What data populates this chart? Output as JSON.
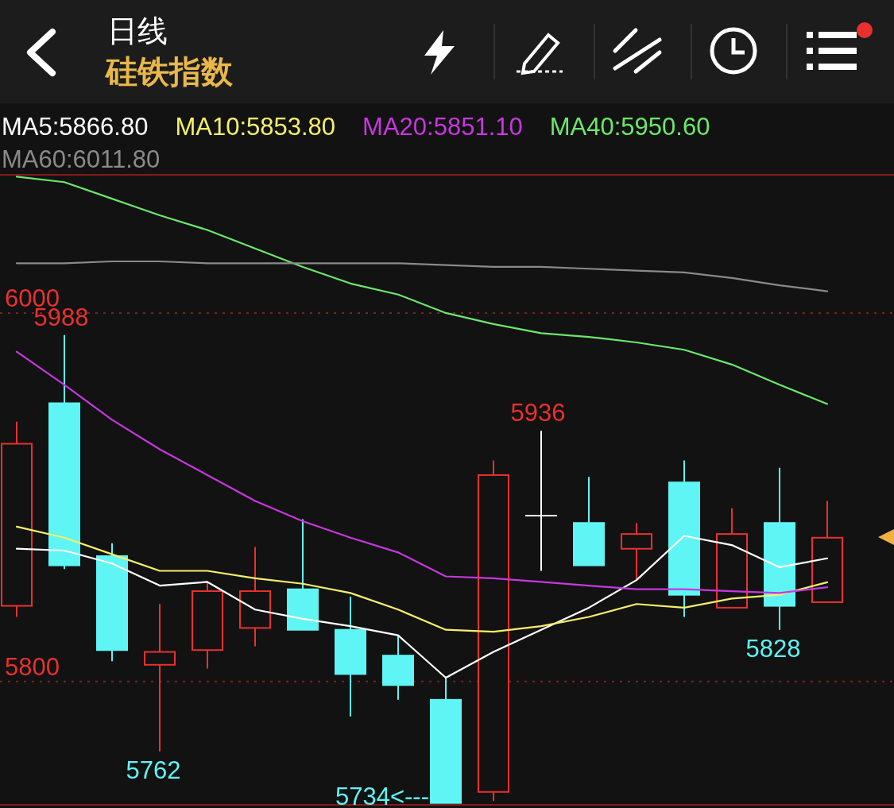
{
  "chart_data": {
    "type": "candlestick",
    "title": "日线",
    "subtitle": "硅铁指数",
    "categories": [
      null,
      null,
      null,
      null,
      null,
      null,
      null,
      null,
      null,
      null,
      null,
      null,
      null,
      null,
      null,
      null,
      null,
      null
    ],
    "ohlc": [
      [
        5841,
        5941,
        5835,
        5929
      ],
      [
        5951,
        5988,
        5861,
        5863
      ],
      [
        5868,
        5875,
        5811,
        5817
      ],
      [
        5809,
        5842,
        5762,
        5816
      ],
      [
        5817,
        5854,
        5807,
        5849
      ],
      [
        5829,
        5873,
        5819,
        5849
      ],
      [
        5850,
        5888,
        5828,
        5828
      ],
      [
        5828,
        5846,
        5781,
        5804
      ],
      [
        5814,
        5825,
        5790,
        5798
      ],
      [
        5790,
        5802,
        5734,
        5734
      ],
      [
        5740,
        5920,
        5735,
        5912
      ],
      [
        5890,
        5936,
        5860,
        5890
      ],
      [
        5886,
        5911,
        5863,
        5863
      ],
      [
        5872,
        5886,
        5855,
        5880
      ],
      [
        5908,
        5920,
        5835,
        5847
      ],
      [
        5840,
        5894,
        5840,
        5880
      ],
      [
        5886,
        5916,
        5828,
        5841
      ],
      [
        5843,
        5898,
        5843,
        5878
      ]
    ],
    "colors": [
      "#e8312f",
      "#5ff5f5",
      "#5ff5f5",
      "#e8312f",
      "#e8312f",
      "#e8312f",
      "#5ff5f5",
      "#5ff5f5",
      "#5ff5f5",
      "#5ff5f5",
      "#e8312f",
      "#ffffff",
      "#5ff5f5",
      "#e8312f",
      "#5ff5f5",
      "#e8312f",
      "#5ff5f5",
      "#e8312f"
    ],
    "series": [
      {
        "name": "MA5:5866.80",
        "type": "line",
        "color": "#ffffff",
        "values": [
          5872,
          5871,
          5864,
          5852,
          5854,
          5839,
          5834,
          5830,
          5825,
          5802,
          5816,
          5828,
          5840,
          5855,
          5879,
          5874,
          5862,
          5866.8
        ]
      },
      {
        "name": "MA10:5853.80",
        "type": "line",
        "color": "#f5f06a",
        "values": [
          5884,
          5878,
          5869,
          5860,
          5860,
          5856,
          5853,
          5848,
          5839,
          5828,
          5827,
          5830,
          5835,
          5842,
          5840,
          5845,
          5847,
          5853.8
        ]
      },
      {
        "name": "MA20:5851.10",
        "type": "line",
        "color": "#c837e0",
        "values": [
          5979,
          5961,
          5942,
          5926,
          5912,
          5898,
          5887,
          5878,
          5870,
          5857,
          5856,
          5854,
          5852,
          5850,
          5850,
          5849,
          5848,
          5851.1
        ]
      },
      {
        "name": "MA40:5950.60",
        "type": "line",
        "color": "#6be86b",
        "values": [
          6074,
          6071,
          6062,
          6053,
          6045,
          6035,
          6025,
          6016,
          6010,
          6000,
          5994,
          5989,
          5987,
          5984,
          5980,
          5972,
          5961,
          5950.6
        ]
      },
      {
        "name": "MA60:6011.80",
        "type": "line",
        "color": "#8a8a8a",
        "values": [
          6027,
          6027,
          6028,
          6028,
          6027,
          6027,
          6027,
          6027,
          6027,
          6026,
          6025,
          6025,
          6024,
          6023,
          6022,
          6019,
          6015,
          6011.8
        ]
      }
    ],
    "ylim": [
      5733,
      6075
    ],
    "yticks": [
      6000,
      5800
    ],
    "grid": "y",
    "legend": "top left",
    "annotations": [
      "5988",
      "5762",
      "5734<---",
      "5936",
      "5828"
    ]
  }
}
